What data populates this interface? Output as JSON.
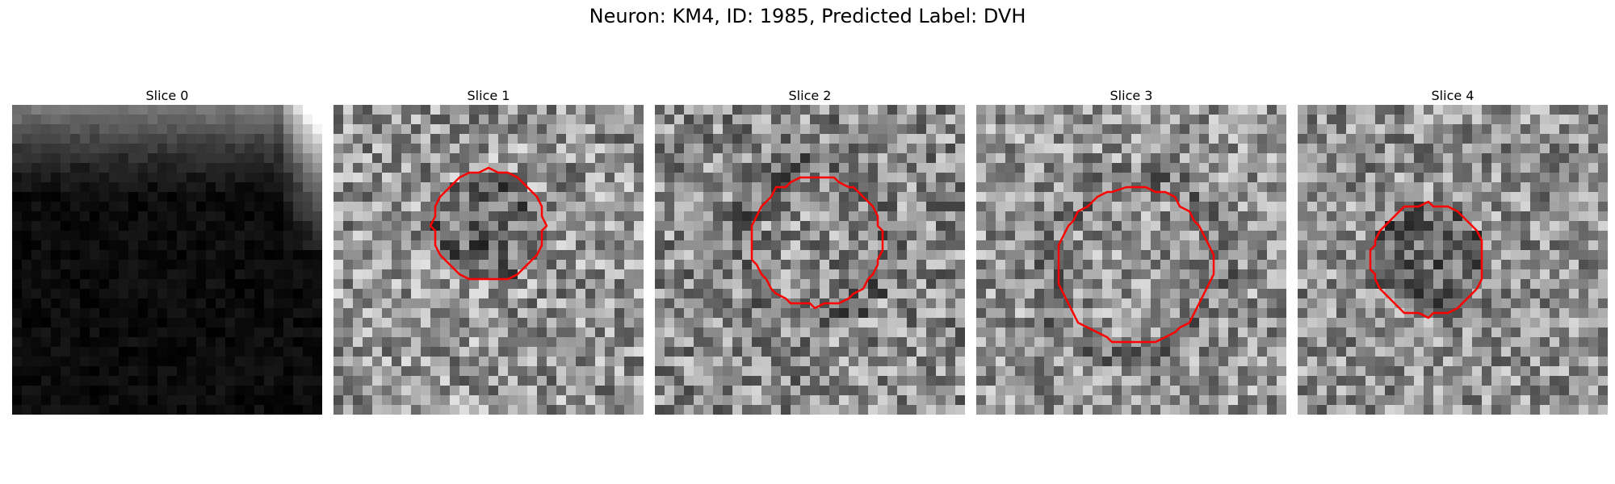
{
  "figure": {
    "title": "Neuron: KM4, ID: 1985, Predicted Label: DVH"
  },
  "panels": [
    {
      "title": "Slice 0",
      "mean_gray": 12,
      "gray_jitter": 24,
      "has_roi": false,
      "roi_color": "#ff0000",
      "bright_corner": "top-right"
    },
    {
      "title": "Slice 1",
      "mean_gray": 150,
      "gray_jitter": 150,
      "has_roi": true,
      "roi_color": "#ff0000",
      "roi_center": [
        0.5,
        0.39
      ],
      "roi_radius": 0.18,
      "roi_dark": true
    },
    {
      "title": "Slice 2",
      "mean_gray": 140,
      "gray_jitter": 150,
      "has_roi": true,
      "roi_color": "#ff0000",
      "roi_center": [
        0.52,
        0.44
      ],
      "roi_radius": 0.21,
      "roi_dark": false
    },
    {
      "title": "Slice 3",
      "mean_gray": 150,
      "gray_jitter": 140,
      "has_roi": true,
      "roi_color": "#ff0000",
      "roi_center": [
        0.51,
        0.52
      ],
      "roi_radius": 0.25,
      "roi_dark": false
    },
    {
      "title": "Slice 4",
      "mean_gray": 145,
      "gray_jitter": 140,
      "has_roi": true,
      "roi_color": "#ff0000",
      "roi_center": [
        0.42,
        0.5
      ],
      "roi_radius": 0.18,
      "roi_dark": true
    }
  ]
}
